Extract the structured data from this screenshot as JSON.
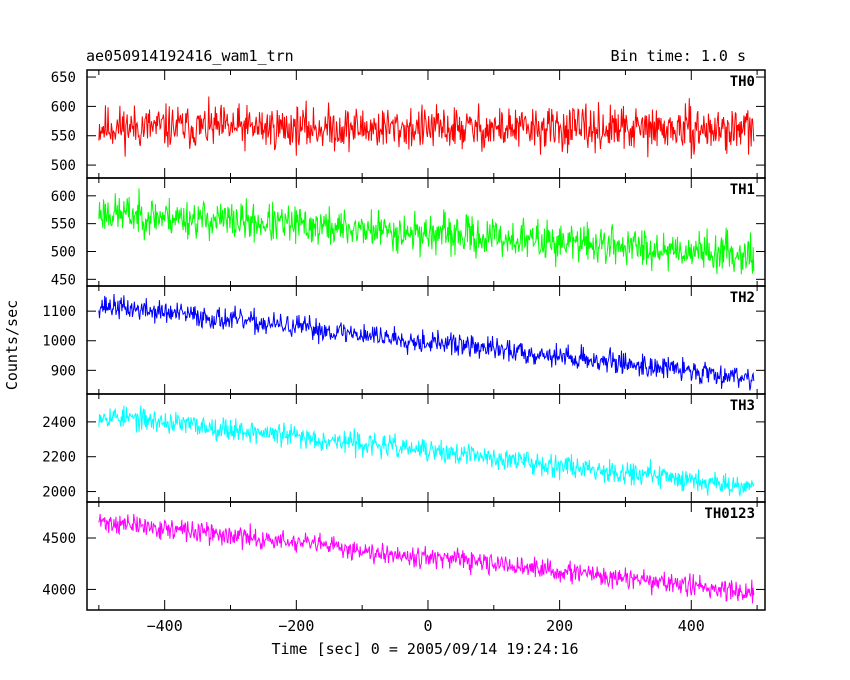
{
  "header": {
    "title": "ae050914192416_wam1_trn",
    "bin_time": "Bin time: 1.0 s"
  },
  "chart_data": {
    "type": "line",
    "title": "ae050914192416_wam1_trn",
    "xlabel": "Time [sec] 0 = 2005/09/14 19:24:16",
    "ylabel": "Counts/sec",
    "xlim": [
      -518,
      512
    ],
    "x_ticks": [
      -400,
      -200,
      0,
      200,
      400
    ],
    "x_tick_labels": [
      "−400",
      "−200",
      "0",
      "200",
      "400"
    ],
    "x_range": [
      -500,
      495
    ],
    "grid": false,
    "panels": [
      {
        "name": "TH0",
        "color": "#ff0000",
        "ylim": [
          478,
          662
        ],
        "yticks": [
          500,
          550,
          600,
          650
        ],
        "trend_start": 565,
        "trend_end": 560,
        "noise_halfwidth": 48,
        "seed": 11
      },
      {
        "name": "TH1",
        "color": "#00ff00",
        "ylim": [
          438,
          632
        ],
        "yticks": [
          450,
          500,
          550,
          600
        ],
        "trend_start": 570,
        "trend_end": 495,
        "noise_halfwidth": 45,
        "seed": 23
      },
      {
        "name": "TH2",
        "color": "#0000ff",
        "ylim": [
          820,
          1185
        ],
        "yticks": [
          900,
          1000,
          1100
        ],
        "trend_start": 1120,
        "trend_end": 875,
        "noise_halfwidth": 50,
        "seed": 37
      },
      {
        "name": "TH3",
        "color": "#00ffff",
        "ylim": [
          1940,
          2560
        ],
        "yticks": [
          2000,
          2200,
          2400
        ],
        "trend_start": 2440,
        "trend_end": 2030,
        "noise_halfwidth": 85,
        "seed": 53
      },
      {
        "name": "TH0123",
        "color": "#ff00ff",
        "ylim": [
          3800,
          4850
        ],
        "yticks": [
          4000,
          4500
        ],
        "trend_start": 4660,
        "trend_end": 3970,
        "noise_halfwidth": 130,
        "seed": 71
      }
    ]
  }
}
